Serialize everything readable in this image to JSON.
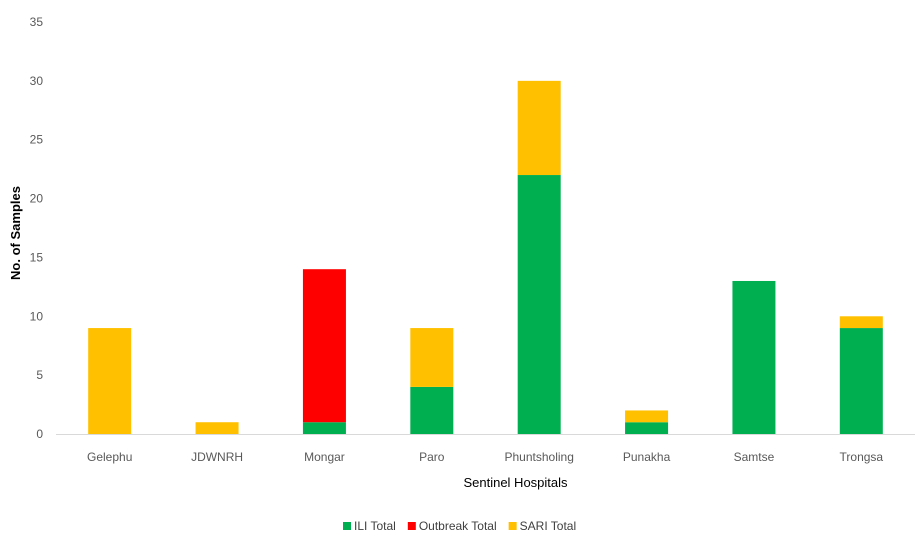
{
  "chart_data": {
    "type": "bar",
    "stacked": true,
    "xlabel": "Sentinel Hospitals",
    "ylabel": "No. of Samples",
    "ylim": [
      0,
      35
    ],
    "yticks": [
      0,
      5,
      10,
      15,
      20,
      25,
      30,
      35
    ],
    "grid": false,
    "legend_position": "bottom",
    "categories": [
      "Gelephu",
      "JDWNRH",
      "Mongar",
      "Paro",
      "Phuntsholing",
      "Punakha",
      "Samtse",
      "Trongsa"
    ],
    "series": [
      {
        "name": "ILI Total",
        "color": "#00b050",
        "values": [
          0,
          0,
          1,
          4,
          22,
          1,
          13,
          9
        ]
      },
      {
        "name": "Outbreak Total",
        "color": "#ff0000",
        "values": [
          0,
          0,
          13,
          0,
          0,
          0,
          0,
          0
        ]
      },
      {
        "name": "SARI Total",
        "color": "#ffc000",
        "values": [
          9,
          1,
          0,
          5,
          8,
          1,
          0,
          1
        ]
      }
    ]
  }
}
